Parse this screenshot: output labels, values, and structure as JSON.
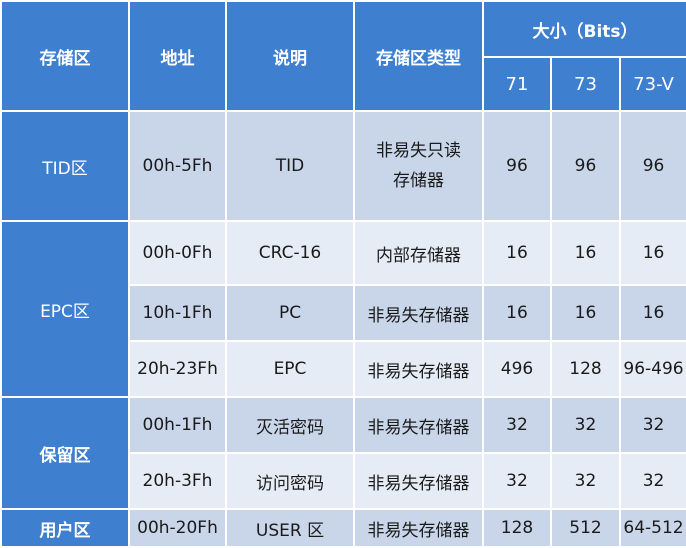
{
  "header": {
    "area": "存储区",
    "address": "地址",
    "description": "说明",
    "type": "存储区类型",
    "size": "大小（Bits）",
    "size_cols": [
      "71",
      "73",
      "73-V"
    ]
  },
  "areas": {
    "tid": "TID区",
    "epc": "EPC区",
    "reserved": "保留区",
    "user": "用户区"
  },
  "rows": [
    {
      "address": "00h-5Fh",
      "description": "TID",
      "type_line1": "非易失只读",
      "type_line2": "存储器",
      "v71": "96",
      "v73": "96",
      "v73v": "96"
    },
    {
      "address": "00h-0Fh",
      "description": "CRC-16",
      "type": "内部存储器",
      "v71": "16",
      "v73": "16",
      "v73v": "16"
    },
    {
      "address": "10h-1Fh",
      "description": "PC",
      "type": "非易失存储器",
      "v71": "16",
      "v73": "16",
      "v73v": "16"
    },
    {
      "address": "20h-23Fh",
      "description": "EPC",
      "type": "非易失存储器",
      "v71": "496",
      "v73": "128",
      "v73v": "96-496"
    },
    {
      "address": "00h-1Fh",
      "description": "灭活密码",
      "type": "非易失存储器",
      "v71": "32",
      "v73": "32",
      "v73v": "32"
    },
    {
      "address": "20h-3Fh",
      "description": "访问密码",
      "type": "非易失存储器",
      "v71": "32",
      "v73": "32",
      "v73v": "32"
    },
    {
      "address": "00h-20Fh",
      "description": "USER 区",
      "type": "非易失存储器",
      "v71": "128",
      "v73": "512",
      "v73v": "64-512"
    }
  ]
}
